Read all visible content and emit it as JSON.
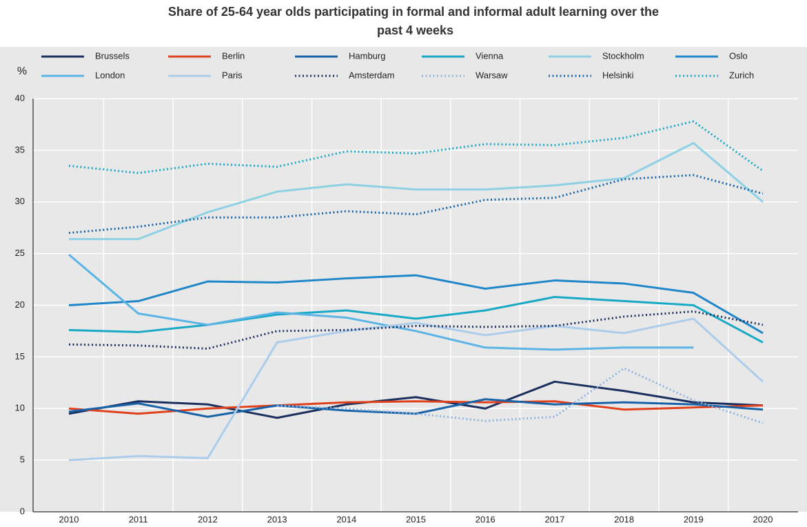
{
  "chart_data": {
    "type": "line",
    "title": "Share of 25-64 year olds participating in formal and informal adult learning over the past 4 weeks",
    "y_label": "%",
    "categories": [
      "2010",
      "2011",
      "2012",
      "2013",
      "2014",
      "2015",
      "2016",
      "2017",
      "2018",
      "2019",
      "2020"
    ],
    "ylim": [
      0,
      40
    ],
    "yticks": [
      0,
      5,
      10,
      15,
      20,
      25,
      30,
      35,
      40
    ],
    "grid": true,
    "series": [
      {
        "name": "Brussels",
        "color": "#1b2f5e",
        "style": "solid",
        "values": [
          9.5,
          10.7,
          10.4,
          9.1,
          10.4,
          11.1,
          10.0,
          12.6,
          11.7,
          10.6,
          10.3
        ]
      },
      {
        "name": "Berlin",
        "color": "#e0401c",
        "style": "solid",
        "values": [
          10.0,
          9.5,
          10.0,
          10.3,
          10.6,
          10.7,
          10.6,
          10.7,
          9.9,
          10.1,
          10.3
        ]
      },
      {
        "name": "Hamburg",
        "color": "#1863a8",
        "style": "solid",
        "values": [
          9.7,
          10.5,
          9.2,
          10.3,
          9.8,
          9.5,
          10.9,
          10.4,
          10.6,
          10.4,
          9.9
        ]
      },
      {
        "name": "Vienna",
        "color": "#17a9c6",
        "style": "solid",
        "values": [
          17.6,
          17.4,
          18.1,
          19.1,
          19.5,
          18.7,
          19.5,
          20.8,
          20.4,
          20.0,
          16.4
        ]
      },
      {
        "name": "Stockholm",
        "color": "#8dd1e2",
        "style": "solid",
        "values": [
          26.4,
          26.4,
          29.0,
          31.0,
          31.7,
          31.2,
          31.2,
          31.6,
          32.3,
          35.7,
          30.0
        ]
      },
      {
        "name": "Oslo",
        "color": "#1f86c9",
        "style": "solid",
        "values": [
          20.0,
          20.4,
          22.3,
          22.2,
          22.6,
          22.9,
          21.6,
          22.4,
          22.1,
          21.2,
          17.3
        ]
      },
      {
        "name": "London",
        "color": "#5ab4e6",
        "style": "solid",
        "values": [
          24.9,
          19.2,
          18.1,
          19.3,
          18.8,
          17.5,
          15.9,
          15.7,
          15.9,
          15.9,
          null
        ]
      },
      {
        "name": "Paris",
        "color": "#abcdea",
        "style": "solid",
        "values": [
          5.0,
          5.4,
          5.2,
          16.4,
          17.5,
          18.3,
          17.1,
          18.0,
          17.3,
          18.7,
          12.6
        ]
      },
      {
        "name": "Amsterdam",
        "color": "#1b2f5e",
        "style": "dotted",
        "values": [
          16.2,
          16.1,
          15.8,
          17.5,
          17.6,
          18.0,
          17.9,
          18.0,
          18.9,
          19.4,
          18.1
        ]
      },
      {
        "name": "Warsaw",
        "color": "#8fb3e0",
        "style": "dotted",
        "values": [
          null,
          null,
          null,
          10.3,
          10.0,
          9.5,
          8.8,
          9.2,
          13.9,
          10.8,
          8.6
        ]
      },
      {
        "name": "Helsinki",
        "color": "#1863a8",
        "style": "dotted",
        "values": [
          27.0,
          27.6,
          28.5,
          28.5,
          29.1,
          28.8,
          30.2,
          30.4,
          32.2,
          32.6,
          30.8
        ]
      },
      {
        "name": "Zurich",
        "color": "#17a9c6",
        "style": "dotted",
        "values": [
          33.5,
          32.8,
          33.7,
          33.4,
          34.9,
          34.7,
          35.6,
          35.5,
          36.2,
          37.8,
          33.0
        ]
      }
    ]
  }
}
